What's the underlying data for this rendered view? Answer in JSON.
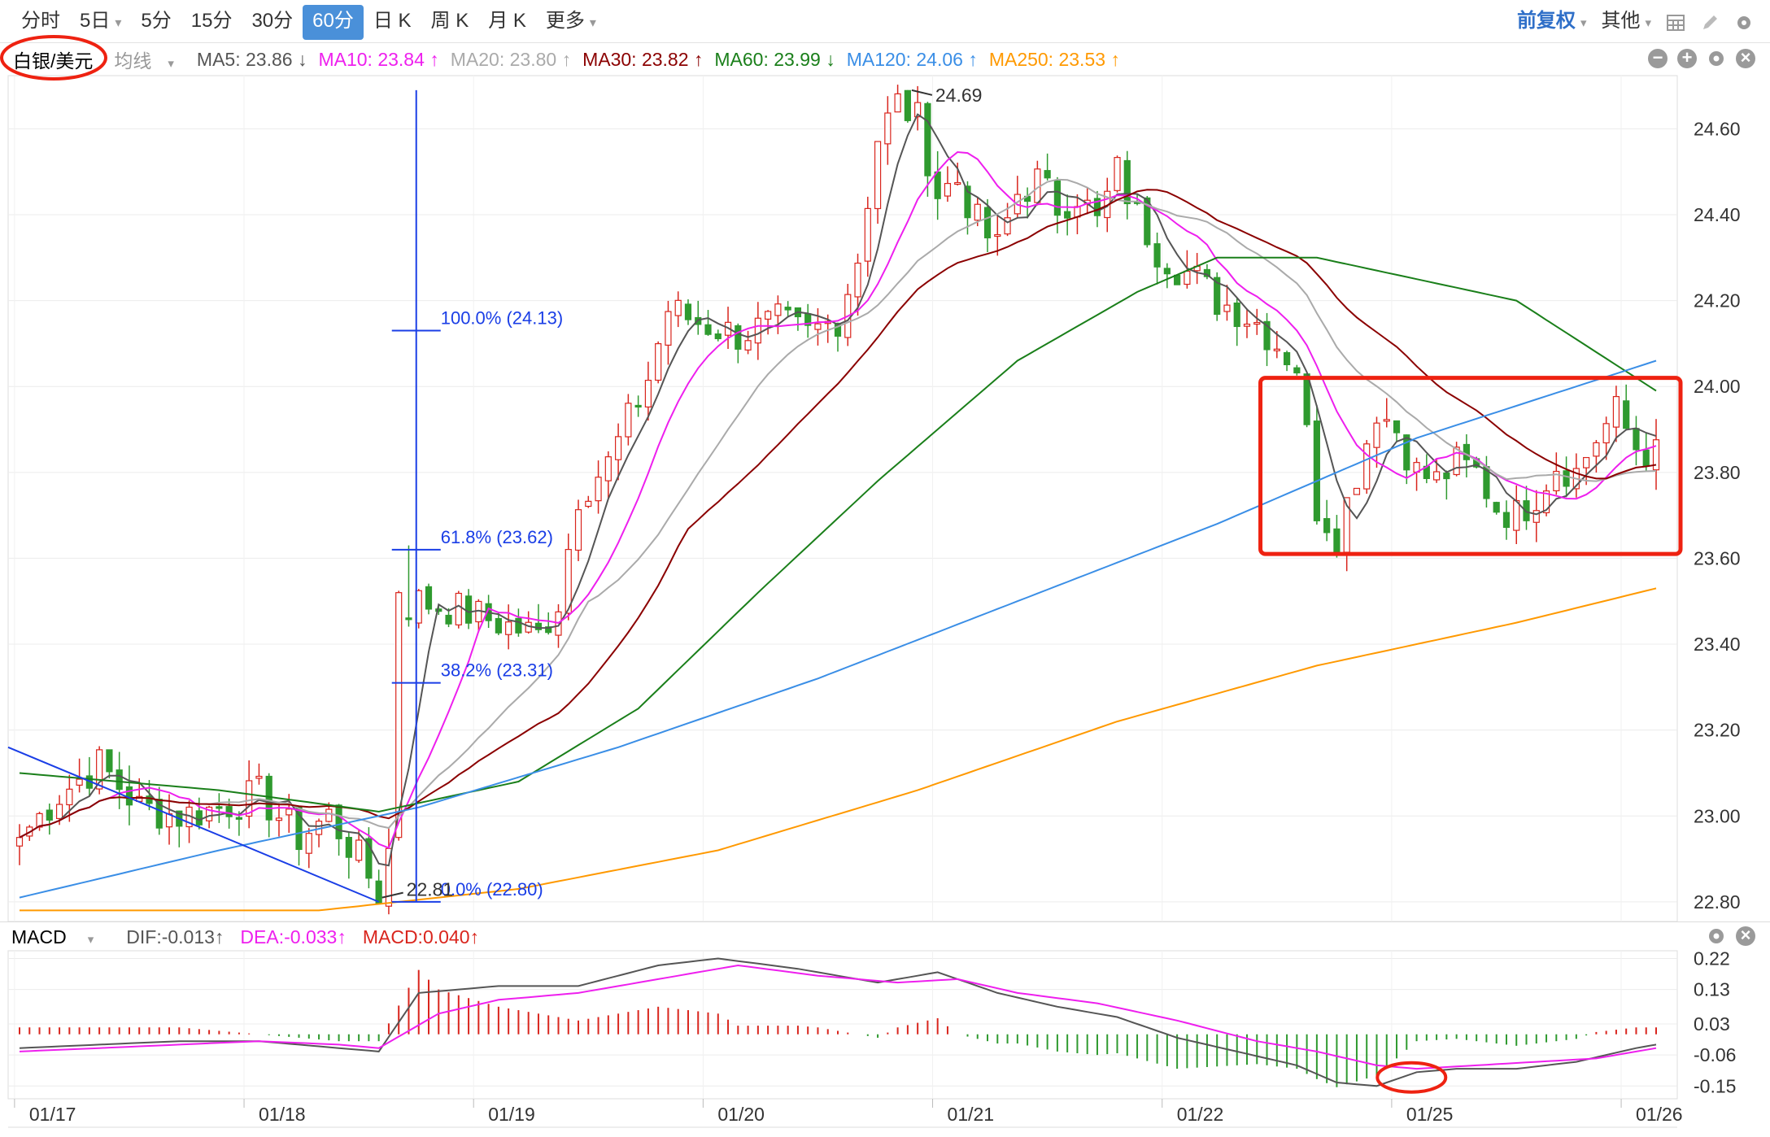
{
  "toolbar": {
    "tabs": [
      "分时",
      "5日",
      "5分",
      "15分",
      "30分",
      "60分",
      "日 K",
      "周 K",
      "月 K",
      "更多"
    ],
    "active_tab": "60分",
    "adjust": "前复权",
    "other": "其他"
  },
  "legend": {
    "symbol": "白银/美元",
    "ma_type": "均线",
    "ma5": "MA5: 23.86 ↓",
    "ma10": "MA10: 23.84 ↑",
    "ma20": "MA20: 23.80 ↑",
    "ma30": "MA30: 23.82 ↑",
    "ma60": "MA60: 23.99 ↓",
    "ma120": "MA120: 24.06 ↑",
    "ma250": "MA250: 23.53 ↑"
  },
  "macd_legend": {
    "name": "MACD",
    "dif": "DIF:-0.013↑",
    "dea": "DEA:-0.033↑",
    "macd": "MACD:0.040↑"
  },
  "colors": {
    "up": "#d9251d",
    "down": "#2f9a2f",
    "ma5": "#555555",
    "ma10": "#ee1fee",
    "ma20": "#aaaaaa",
    "ma30": "#8b0000",
    "ma60": "#1a7f1a",
    "ma120": "#3a8ee6",
    "ma250": "#ff9900",
    "fib": "#1a3ee6",
    "box": "#ee2211",
    "dif": "#555555",
    "dea": "#ee1fee"
  },
  "chart_data": {
    "type": "candlestick",
    "price_axis": {
      "ylim": [
        22.76,
        24.72
      ],
      "ticks": [
        24.6,
        24.4,
        24.2,
        24.0,
        23.8,
        23.6,
        23.4,
        23.2,
        23.0,
        22.8
      ]
    },
    "macd_axis": {
      "ylim": [
        -0.18,
        0.24
      ],
      "ticks": [
        0.22,
        0.13,
        0.03,
        -0.06,
        -0.15
      ]
    },
    "x_labels": [
      {
        "i": 0,
        "label": "01/17"
      },
      {
        "i": 23,
        "label": "01/18"
      },
      {
        "i": 46,
        "label": "01/19"
      },
      {
        "i": 69,
        "label": "01/20"
      },
      {
        "i": 92,
        "label": "01/21"
      },
      {
        "i": 115,
        "label": "01/22"
      },
      {
        "i": 138,
        "label": "01/25"
      },
      {
        "i": 161,
        "label": "01/26"
      }
    ],
    "high_label": "24.69",
    "low_label": "22.81",
    "fib_levels": [
      {
        "label": "100.0% (24.13)",
        "price": 24.13
      },
      {
        "label": "61.8% (23.62)",
        "price": 23.62
      },
      {
        "label": "38.2% (23.31)",
        "price": 23.31
      },
      {
        "label": "0.0% (22.80)",
        "price": 22.8
      }
    ],
    "highlight_box": {
      "from_index": 125,
      "to_index": 164,
      "price_high": 24.02,
      "price_low": 23.61
    },
    "close_anchors": [
      [
        0,
        22.95
      ],
      [
        4,
        23.05
      ],
      [
        8,
        23.12
      ],
      [
        12,
        23.02
      ],
      [
        16,
        23.0
      ],
      [
        20,
        23.02
      ],
      [
        24,
        23.05
      ],
      [
        28,
        22.95
      ],
      [
        31,
        23.0
      ],
      [
        34,
        22.9
      ],
      [
        36,
        22.82
      ],
      [
        37,
        22.92
      ],
      [
        38,
        23.48
      ],
      [
        40,
        23.5
      ],
      [
        44,
        23.48
      ],
      [
        48,
        23.45
      ],
      [
        52,
        23.42
      ],
      [
        54,
        23.5
      ],
      [
        56,
        23.75
      ],
      [
        59,
        23.82
      ],
      [
        63,
        24.02
      ],
      [
        65,
        24.18
      ],
      [
        68,
        24.15
      ],
      [
        72,
        24.12
      ],
      [
        76,
        24.15
      ],
      [
        79,
        24.12
      ],
      [
        82,
        24.16
      ],
      [
        84,
        24.3
      ],
      [
        86,
        24.58
      ],
      [
        88,
        24.66
      ],
      [
        90,
        24.62
      ],
      [
        92,
        24.45
      ],
      [
        94,
        24.48
      ],
      [
        96,
        24.38
      ],
      [
        98,
        24.32
      ],
      [
        100,
        24.45
      ],
      [
        102,
        24.48
      ],
      [
        104,
        24.42
      ],
      [
        106,
        24.45
      ],
      [
        108,
        24.38
      ],
      [
        110,
        24.5
      ],
      [
        112,
        24.4
      ],
      [
        114,
        24.32
      ],
      [
        116,
        24.28
      ],
      [
        118,
        24.25
      ],
      [
        120,
        24.2
      ],
      [
        122,
        24.18
      ],
      [
        124,
        24.15
      ],
      [
        126,
        24.1
      ],
      [
        128,
        24.05
      ],
      [
        130,
        23.72
      ],
      [
        132,
        23.66
      ],
      [
        134,
        23.8
      ],
      [
        136,
        23.95
      ],
      [
        138,
        23.9
      ],
      [
        140,
        23.8
      ],
      [
        142,
        23.78
      ],
      [
        144,
        23.82
      ],
      [
        146,
        23.8
      ],
      [
        148,
        23.72
      ],
      [
        150,
        23.7
      ],
      [
        152,
        23.75
      ],
      [
        154,
        23.82
      ],
      [
        156,
        23.8
      ],
      [
        158,
        23.88
      ],
      [
        160,
        23.94
      ],
      [
        162,
        23.86
      ],
      [
        164,
        23.84
      ]
    ],
    "macd_anchors": {
      "dif": [
        [
          0,
          -0.04
        ],
        [
          8,
          -0.03
        ],
        [
          16,
          -0.02
        ],
        [
          24,
          -0.02
        ],
        [
          32,
          -0.04
        ],
        [
          36,
          -0.05
        ],
        [
          40,
          0.12
        ],
        [
          48,
          0.14
        ],
        [
          56,
          0.14
        ],
        [
          64,
          0.2
        ],
        [
          70,
          0.22
        ],
        [
          78,
          0.19
        ],
        [
          86,
          0.15
        ],
        [
          92,
          0.18
        ],
        [
          98,
          0.12
        ],
        [
          104,
          0.08
        ],
        [
          110,
          0.05
        ],
        [
          116,
          -0.01
        ],
        [
          122,
          -0.05
        ],
        [
          128,
          -0.09
        ],
        [
          132,
          -0.14
        ],
        [
          136,
          -0.15
        ],
        [
          140,
          -0.11
        ],
        [
          144,
          -0.1
        ],
        [
          150,
          -0.1
        ],
        [
          156,
          -0.08
        ],
        [
          162,
          -0.04
        ],
        [
          164,
          -0.03
        ]
      ],
      "dea": [
        [
          0,
          -0.05
        ],
        [
          8,
          -0.04
        ],
        [
          16,
          -0.03
        ],
        [
          24,
          -0.02
        ],
        [
          32,
          -0.03
        ],
        [
          36,
          -0.04
        ],
        [
          42,
          0.06
        ],
        [
          48,
          0.1
        ],
        [
          56,
          0.12
        ],
        [
          64,
          0.16
        ],
        [
          72,
          0.2
        ],
        [
          80,
          0.17
        ],
        [
          88,
          0.15
        ],
        [
          94,
          0.16
        ],
        [
          100,
          0.12
        ],
        [
          108,
          0.09
        ],
        [
          116,
          0.04
        ],
        [
          124,
          -0.02
        ],
        [
          130,
          -0.05
        ],
        [
          136,
          -0.09
        ],
        [
          140,
          -0.1
        ],
        [
          146,
          -0.09
        ],
        [
          152,
          -0.08
        ],
        [
          158,
          -0.07
        ],
        [
          164,
          -0.04
        ]
      ]
    },
    "ma_offsets": {
      "ma5": 0,
      "ma10": 0,
      "ma20": 0,
      "ma30": 0
    },
    "long_ma_anchors": {
      "ma60": [
        [
          0,
          23.1
        ],
        [
          20,
          23.06
        ],
        [
          36,
          23.01
        ],
        [
          50,
          23.08
        ],
        [
          62,
          23.25
        ],
        [
          74,
          23.52
        ],
        [
          86,
          23.78
        ],
        [
          100,
          24.06
        ],
        [
          112,
          24.22
        ],
        [
          120,
          24.3
        ],
        [
          130,
          24.3
        ],
        [
          140,
          24.25
        ],
        [
          150,
          24.2
        ],
        [
          164,
          23.99
        ]
      ],
      "ma120": [
        [
          0,
          22.81
        ],
        [
          20,
          22.92
        ],
        [
          40,
          23.02
        ],
        [
          60,
          23.16
        ],
        [
          80,
          23.32
        ],
        [
          100,
          23.5
        ],
        [
          120,
          23.68
        ],
        [
          140,
          23.88
        ],
        [
          164,
          24.06
        ]
      ],
      "ma250": [
        [
          0,
          22.78
        ],
        [
          30,
          22.78
        ],
        [
          50,
          22.83
        ],
        [
          70,
          22.92
        ],
        [
          90,
          23.06
        ],
        [
          110,
          23.22
        ],
        [
          130,
          23.35
        ],
        [
          150,
          23.45
        ],
        [
          164,
          23.53
        ]
      ]
    }
  }
}
